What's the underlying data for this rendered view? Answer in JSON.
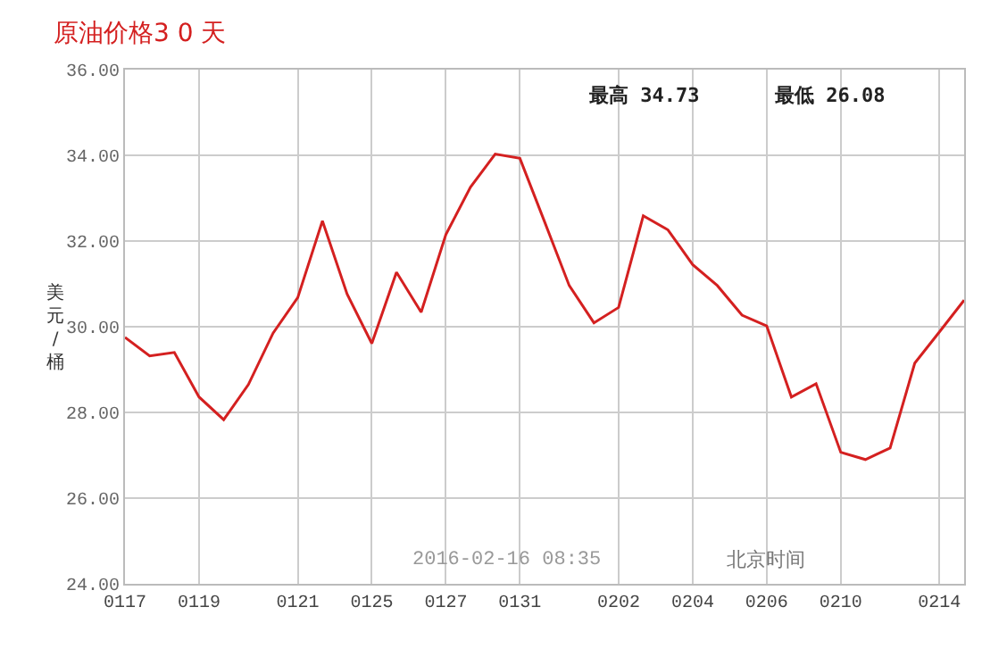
{
  "chart_data": {
    "type": "line",
    "title": "原油价格3 0 天",
    "ylabel": "美元/桶",
    "annotations": [
      "最高 34.73",
      "最低 26.08",
      "2016-02-16 08:35",
      "北京时间"
    ],
    "categories": [
      "0117",
      null,
      null,
      "0119",
      null,
      null,
      null,
      "0121",
      null,
      null,
      "0125",
      null,
      null,
      "0127",
      null,
      null,
      "0131",
      null,
      null,
      null,
      "0202",
      null,
      null,
      "0204",
      null,
      null,
      "0206",
      null,
      null,
      "0210",
      null,
      null,
      null,
      "0214",
      null
    ],
    "series": [
      {
        "color": "#d42020",
        "values": [
          29.75,
          29.32,
          29.4,
          28.36,
          27.83,
          28.65,
          29.85,
          30.68,
          32.47,
          30.76,
          29.61,
          31.27,
          30.34,
          32.15,
          33.26,
          34.03,
          33.93,
          32.45,
          30.96,
          30.09,
          30.45,
          32.59,
          32.26,
          31.45,
          30.96,
          30.27,
          30.02,
          28.36,
          28.67,
          27.07,
          26.9,
          27.17,
          29.15,
          29.88,
          30.62
        ]
      }
    ],
    "ylim": [
      24,
      36
    ],
    "yticks": [
      {
        "value": 24,
        "label": "24.00"
      },
      {
        "value": 26,
        "label": "26.00"
      },
      {
        "value": 28,
        "label": "28.00"
      },
      {
        "value": 30,
        "label": "30.00"
      },
      {
        "value": 32,
        "label": "32.00"
      },
      {
        "value": 34,
        "label": "34.00"
      },
      {
        "value": 36,
        "label": "36.00"
      }
    ],
    "grid": true,
    "legend": false,
    "marker": "none",
    "line_style": "solid"
  }
}
